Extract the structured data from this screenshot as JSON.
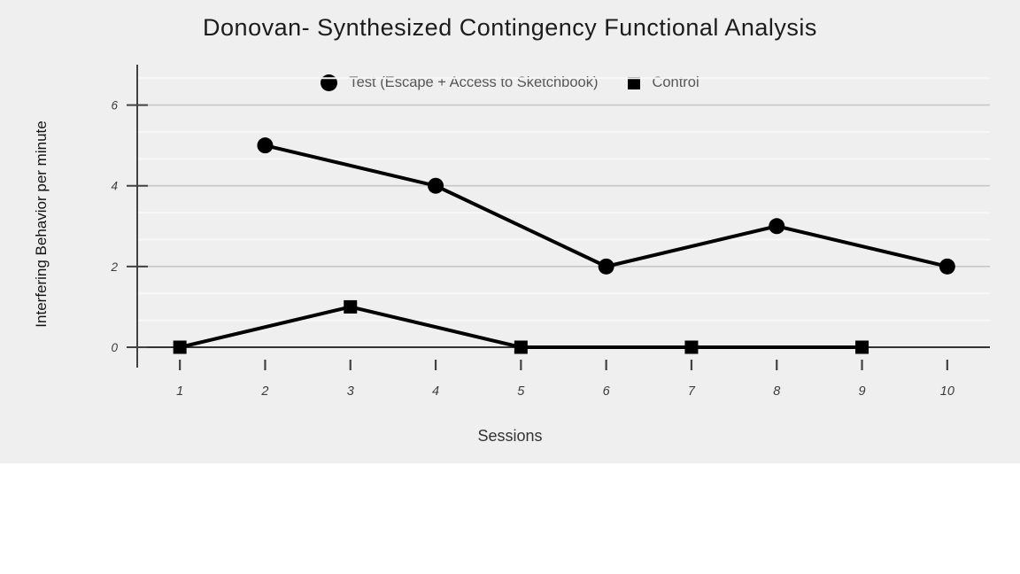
{
  "chart_data": {
    "type": "line",
    "title": "Donovan- Synthesized Contingency Functional Analysis",
    "xlabel": "Sessions",
    "ylabel": "Interfering Behavior per minute",
    "x_ticks": [
      "1",
      "2",
      "3",
      "4",
      "5",
      "6",
      "7",
      "8",
      "9",
      "10"
    ],
    "y_ticks": [
      0,
      2,
      4,
      6
    ],
    "xlim": [
      0.5,
      10.5
    ],
    "ylim": [
      0,
      7
    ],
    "grid": {
      "horizontal_major_step": 2,
      "minor_lines_per_major": 2,
      "vertical_gridlines": false
    },
    "legend_position": "top-center",
    "series": [
      {
        "name": "Test (Escape + Access to Sketchbook)",
        "marker": "circle",
        "color": "#000000",
        "points": [
          {
            "x": 2,
            "y": 5
          },
          {
            "x": 4,
            "y": 4
          },
          {
            "x": 6,
            "y": 2
          },
          {
            "x": 8,
            "y": 3
          },
          {
            "x": 10,
            "y": 2
          }
        ]
      },
      {
        "name": "Control",
        "marker": "square",
        "color": "#000000",
        "points": [
          {
            "x": 1,
            "y": 0
          },
          {
            "x": 3,
            "y": 1
          },
          {
            "x": 5,
            "y": 0
          },
          {
            "x": 7,
            "y": 0
          },
          {
            "x": 9,
            "y": 0
          }
        ]
      }
    ],
    "colors": {
      "background": "#efefef",
      "series": "#000000",
      "axis": "#424242",
      "baseline": "#333333",
      "gridline_major": "#c7c7c7",
      "gridline_minor": "#f7f7f7",
      "tick_label": "#3c3c3c",
      "legend_text": "#565656"
    }
  }
}
